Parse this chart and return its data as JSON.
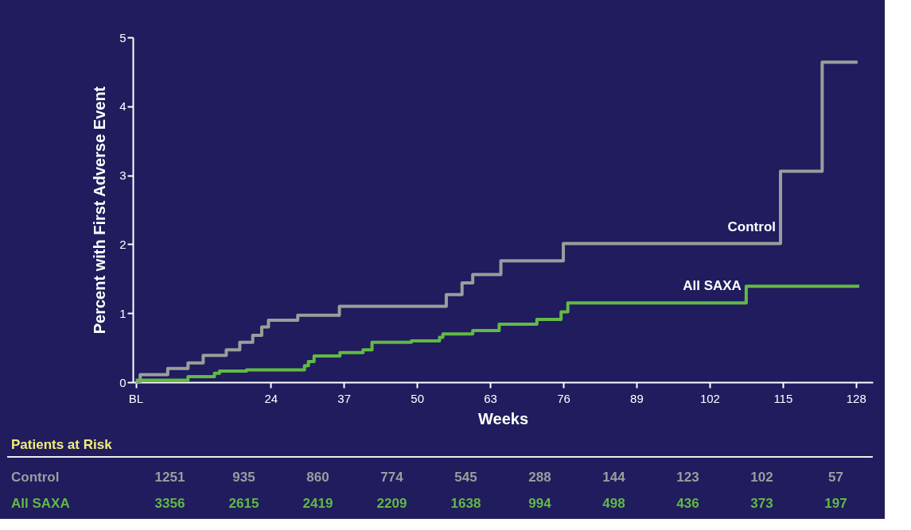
{
  "chart_data": [
    {
      "type": "step",
      "xlabel": "Weeks",
      "ylabel": "Percent with First Adverse Event",
      "xlim": [
        -0.5,
        131
      ],
      "ylim": [
        0,
        5
      ],
      "xticks": [
        {
          "value": 0,
          "label": "BL"
        },
        24,
        37,
        50,
        63,
        76,
        89,
        102,
        115,
        128
      ],
      "yticks": [
        0,
        1,
        2,
        3,
        4,
        5
      ],
      "series": [
        {
          "name": "Control",
          "color": "#9a9e9c",
          "x": [
            0,
            0.8,
            5.7,
            9.3,
            12,
            16.1,
            18.5,
            20.8,
            22.4,
            23.6,
            28.8,
            36.2,
            55.2,
            58,
            59.9,
            64.9,
            76,
            114.6,
            122,
            128.3
          ],
          "values": [
            0,
            0.11,
            0.2,
            0.28,
            0.39,
            0.47,
            0.58,
            0.68,
            0.8,
            0.9,
            0.97,
            1.1,
            1.27,
            1.44,
            1.56,
            1.76,
            2.01,
            3.06,
            4.64,
            4.64
          ]
        },
        {
          "name": "All SAXA",
          "color": "#62b946",
          "x": [
            0,
            9.3,
            14,
            14.9,
            19.7,
            30,
            30.7,
            31.7,
            36.3,
            40.4,
            42,
            49,
            54,
            54.6,
            59.9,
            64.6,
            71.3,
            75.6,
            76.8,
            108.5,
            128.6
          ],
          "values": [
            0.03,
            0.08,
            0.13,
            0.16,
            0.18,
            0.24,
            0.3,
            0.38,
            0.43,
            0.47,
            0.58,
            0.6,
            0.65,
            0.7,
            0.75,
            0.84,
            0.91,
            1.02,
            1.15,
            1.39,
            1.39
          ]
        }
      ]
    },
    {
      "type": "heatmap",
      "title": "Patients at Risk",
      "categories": [
        null,
        null,
        null,
        null,
        null,
        null,
        null,
        null,
        null,
        null
      ],
      "y_categories": [
        "Control",
        "All SAXA"
      ],
      "data_labels": true,
      "cells": [
        [
          1251,
          935,
          860,
          774,
          545,
          288,
          144,
          123,
          102,
          57
        ],
        [
          3356,
          2615,
          2419,
          2209,
          1638,
          994,
          498,
          436,
          373,
          197
        ]
      ]
    }
  ]
}
